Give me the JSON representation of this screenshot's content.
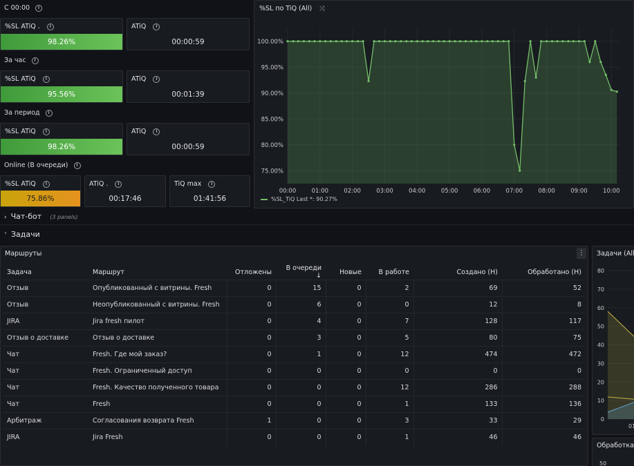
{
  "top_label": "C 00:00",
  "sections": [
    {
      "label": "",
      "sl_title": "%SL ATiQ .",
      "sl_value": "98.26%",
      "atiq_title": "ATiQ",
      "atiq_value": "00:00:59"
    },
    {
      "label": "За час",
      "sl_title": "%SL ATiQ",
      "sl_value": "95.56%",
      "atiq_title": "ATiQ",
      "atiq_value": "00:01:39"
    },
    {
      "label": "За период",
      "sl_title": "%SL ATiQ",
      "sl_value": "98.26%",
      "atiq_title": "ATiQ",
      "atiq_value": "00:00:59"
    }
  ],
  "online": {
    "label": "Online (В очереди)",
    "sl_title": "%SL ATiQ",
    "sl_value": "75.86%",
    "atiq_title": "ATiQ .",
    "atiq_value": "00:17:46",
    "tiq_title": "TiQ max",
    "tiq_value": "01:41:56"
  },
  "graph_panel": {
    "title": "%SL по TiQ (All)",
    "legend": "%SL_TiQ  Last *: 90.27%",
    "line_color": "#73bf69"
  },
  "chart_data": {
    "type": "area",
    "title": "%SL по TiQ (All)",
    "x_ticks": [
      "00:00",
      "01:00",
      "02:00",
      "03:00",
      "04:00",
      "05:00",
      "06:00",
      "07:00",
      "08:00",
      "09:00",
      "10:00"
    ],
    "y_ticks": [
      "75.00%",
      "80.00%",
      "85.00%",
      "90.00%",
      "95.00%",
      "100.00%"
    ],
    "ylim": [
      72.5,
      102.5
    ],
    "xlim": [
      0,
      10.25
    ],
    "series": [
      {
        "name": "%SL_TiQ",
        "x": [
          0,
          0.17,
          0.33,
          0.5,
          0.67,
          0.83,
          1.0,
          1.17,
          1.33,
          1.5,
          1.67,
          1.83,
          2.0,
          2.17,
          2.33,
          2.5,
          2.67,
          2.83,
          3.0,
          3.17,
          3.33,
          3.5,
          3.67,
          3.83,
          4.0,
          4.17,
          4.33,
          4.5,
          4.67,
          4.83,
          5.0,
          5.17,
          5.33,
          5.5,
          5.67,
          5.83,
          6.0,
          6.17,
          6.33,
          6.5,
          6.67,
          6.83,
          7.0,
          7.17,
          7.33,
          7.5,
          7.67,
          7.83,
          8.0,
          8.17,
          8.33,
          8.5,
          8.67,
          8.83,
          9.0,
          9.17,
          9.33,
          9.5,
          9.67,
          9.83,
          10.0,
          10.17
        ],
        "y": [
          100,
          100,
          100,
          100,
          100,
          100,
          100,
          100,
          100,
          100,
          100,
          100,
          100,
          100,
          100,
          92.3,
          100,
          100,
          100,
          100,
          100,
          100,
          100,
          100,
          100,
          100,
          100,
          100,
          100,
          100,
          100,
          100,
          100,
          100,
          100,
          100,
          100,
          100,
          100,
          100,
          100,
          100,
          80,
          75,
          92.3,
          100,
          93,
          100,
          100,
          100,
          100,
          100,
          100,
          100,
          100,
          100,
          96,
          100,
          96,
          93.5,
          90.6,
          90.27
        ]
      }
    ]
  },
  "chat_bot": {
    "label": "Чат-бот",
    "note": "(3 panels)"
  },
  "tasks": {
    "label": "Задачи"
  },
  "routes": {
    "title": "Маршруты",
    "columns": [
      "Задача",
      "Маршрут",
      "Отложены",
      "В очереди",
      "Новые",
      "В работе",
      "Создано (Н)",
      "Обработано (Н)"
    ],
    "sort_arrow": "↓",
    "rows": [
      [
        "Отзыв",
        "Опубликованный с витрины. Fresh",
        "0",
        "15",
        "0",
        "2",
        "69",
        "52"
      ],
      [
        "Отзыв",
        "Неопубликованный с витрины. Fresh",
        "0",
        "6",
        "0",
        "0",
        "12",
        "8"
      ],
      [
        "JIRA",
        "Jira fresh пилот",
        "0",
        "4",
        "0",
        "7",
        "128",
        "117"
      ],
      [
        "Отзыв о доставке",
        "Отзыв о доставке",
        "0",
        "3",
        "0",
        "5",
        "80",
        "75"
      ],
      [
        "Чат",
        "Fresh. Где мой заказ?",
        "0",
        "1",
        "0",
        "12",
        "474",
        "472"
      ],
      [
        "Чат",
        "Fresh. Ограниченный доступ",
        "0",
        "0",
        "0",
        "0",
        "0",
        "0"
      ],
      [
        "Чат",
        "Fresh. Качество полученного товара",
        "0",
        "0",
        "0",
        "12",
        "286",
        "288"
      ],
      [
        "Чат",
        "Fresh",
        "0",
        "0",
        "0",
        "1",
        "133",
        "136"
      ],
      [
        "Арбитраж",
        "Согласования возврата Fresh",
        "1",
        "0",
        "0",
        "3",
        "33",
        "29"
      ],
      [
        "JIRA",
        "Jira Fresh",
        "0",
        "0",
        "0",
        "1",
        "46",
        "46"
      ]
    ]
  },
  "tasks_panel": {
    "title": "Задачи (All)",
    "y_ticks": [
      "80",
      "70",
      "60",
      "50",
      "40",
      "30",
      "20",
      "10",
      "0"
    ],
    "x_tick": "01"
  },
  "processing_panel": {
    "title": "Обработка",
    "y_tick": "50"
  }
}
